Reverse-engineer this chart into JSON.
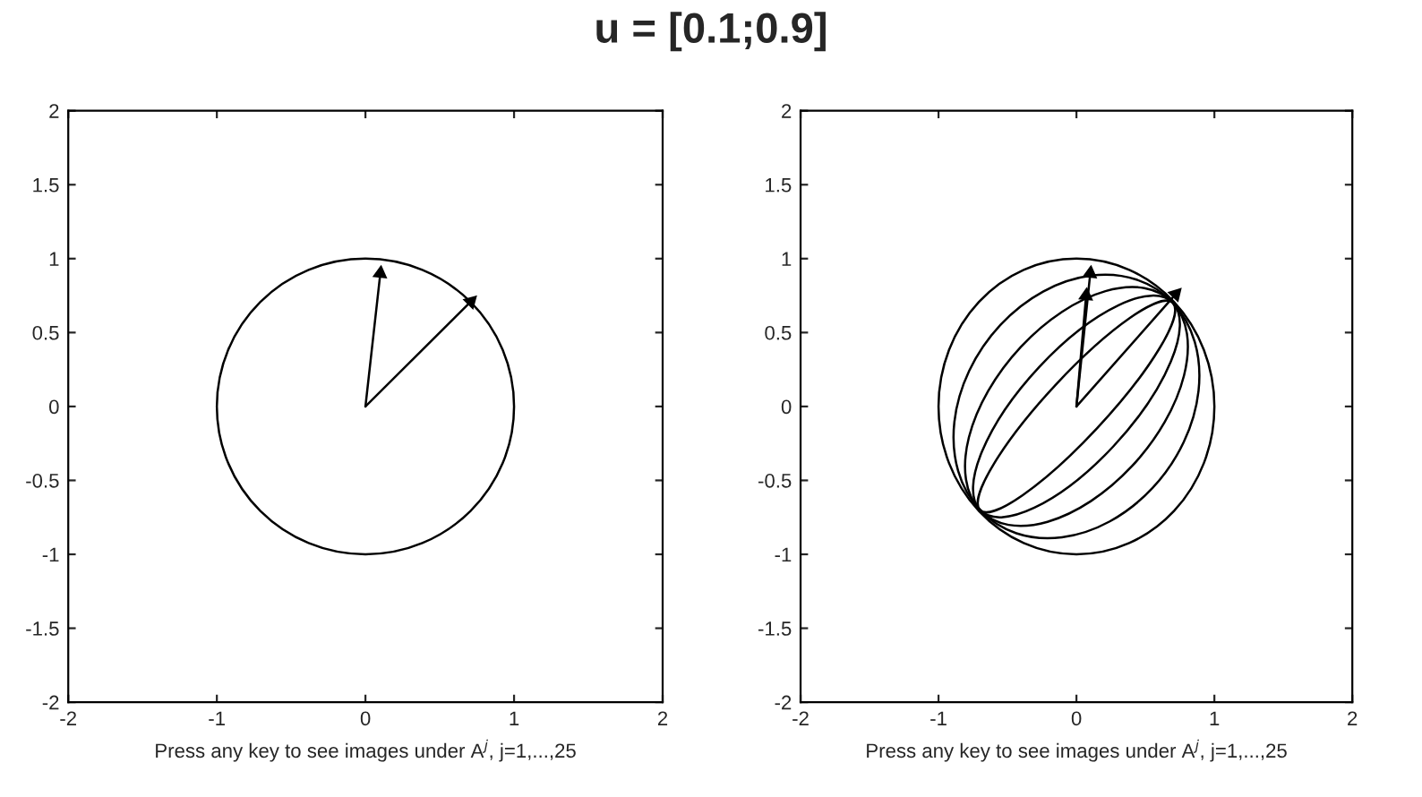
{
  "chart_data": [
    {
      "type": "line",
      "title": "u = [0.1;0.9]",
      "xlabel": "Press any key to see images under A$^{j}$, j=1,...,25",
      "xlim": [
        -2,
        2
      ],
      "ylim": [
        -2,
        2
      ],
      "xticks": [
        -2,
        -1,
        0,
        1,
        2
      ],
      "yticks": [
        -2,
        -1.5,
        -1,
        -0.5,
        0,
        0.5,
        1,
        1.5,
        2
      ],
      "grid": false,
      "series": [
        {
          "marker": "triangle",
          "color": "#000000",
          "x": [
            0,
            0.1
          ],
          "values": [
            0,
            0.9
          ]
        },
        {
          "marker": "triangle",
          "color": "#000000",
          "x": [
            0,
            0.71
          ],
          "values": [
            0,
            0.71
          ]
        }
      ]
    },
    {
      "type": "line",
      "xlabel": "Press any key to see images under A$^{j}$, j=1,...,25",
      "xlim": [
        -2,
        2
      ],
      "ylim": [
        -2,
        2
      ],
      "xticks": [
        -2,
        -1,
        0,
        1,
        2
      ],
      "yticks": [
        -2,
        -1.5,
        -1,
        -0.5,
        0,
        0.5,
        1,
        1.5,
        2
      ],
      "grid": false,
      "series": [
        {
          "marker": "triangle",
          "color": "#000000",
          "x": [
            0,
            0.1
          ],
          "values": [
            0,
            0.9
          ]
        },
        {
          "marker": "triangle",
          "color": "#000000",
          "x": [
            0,
            0.07
          ],
          "values": [
            0,
            0.75
          ]
        },
        {
          "marker": "triangle",
          "color": "#000000",
          "x": [
            0,
            0.72
          ],
          "values": [
            0,
            0.76
          ]
        }
      ]
    }
  ]
}
